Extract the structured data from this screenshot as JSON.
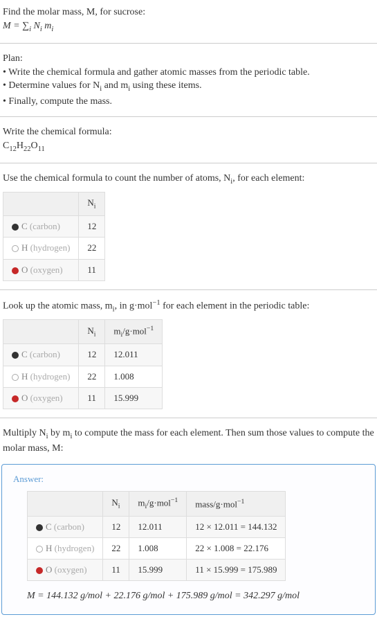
{
  "intro": {
    "line1": "Find the molar mass, M, for sucrose:",
    "line2_html": "M = ∑<sub>i</sub> N<sub>i</sub> m<sub>i</sub>"
  },
  "plan": {
    "heading": "Plan:",
    "b1": "• Write the chemical formula and gather atomic masses from the periodic table.",
    "b2_html": "• Determine values for N<sub>i</sub> and m<sub>i</sub> using these items.",
    "b3": "• Finally, compute the mass."
  },
  "chemFormula": {
    "heading": "Write the chemical formula:",
    "formula_html": "C<sub>12</sub>H<sub>22</sub>O<sub>11</sub>"
  },
  "countHeading_html": "Use the chemical formula to count the number of atoms, N<sub>i</sub>, for each element:",
  "table1": {
    "h_ni_html": "N<sub>i</sub>",
    "r1_el_html": "<span class='swatch c-swatch'></span>C <span style='color:#aaa'>(carbon)</span>",
    "r1_ni": "12",
    "r2_el_html": "<span class='swatch h-swatch'></span>H <span style='color:#aaa'>(hydrogen)</span>",
    "r2_ni": "22",
    "r3_el_html": "<span class='swatch o-swatch'></span>O <span style='color:#aaa'>(oxygen)</span>",
    "r3_ni": "11"
  },
  "lookupHeading_html": "Look up the atomic mass, m<sub>i</sub>, in g·mol<sup>−1</sup> for each element in the periodic table:",
  "table2": {
    "h_ni_html": "N<sub>i</sub>",
    "h_mi_html": "m<sub>i</sub>/g·mol<sup>−1</sup>",
    "r1_el_html": "<span class='swatch c-swatch'></span>C <span style='color:#aaa'>(carbon)</span>",
    "r1_ni": "12",
    "r1_mi": "12.011",
    "r2_el_html": "<span class='swatch h-swatch'></span>H <span style='color:#aaa'>(hydrogen)</span>",
    "r2_ni": "22",
    "r2_mi": "1.008",
    "r3_el_html": "<span class='swatch o-swatch'></span>O <span style='color:#aaa'>(oxygen)</span>",
    "r3_ni": "11",
    "r3_mi": "15.999"
  },
  "multiplyHeading_html": "Multiply N<sub>i</sub> by m<sub>i</sub> to compute the mass for each element. Then sum those values to compute the molar mass, M:",
  "answer": {
    "label": "Answer:",
    "h_ni_html": "N<sub>i</sub>",
    "h_mi_html": "m<sub>i</sub>/g·mol<sup>−1</sup>",
    "h_mass_html": "mass/g·mol<sup>−1</sup>",
    "r1_el_html": "<span class='swatch c-swatch'></span>C <span style='color:#aaa'>(carbon)</span>",
    "r1_ni": "12",
    "r1_mi": "12.011",
    "r1_mass": "12 × 12.011 = 144.132",
    "r2_el_html": "<span class='swatch h-swatch'></span>H <span style='color:#aaa'>(hydrogen)</span>",
    "r2_ni": "22",
    "r2_mi": "1.008",
    "r2_mass": "22 × 1.008 = 22.176",
    "r3_el_html": "<span class='swatch o-swatch'></span>O <span style='color:#aaa'>(oxygen)</span>",
    "r3_ni": "11",
    "r3_mi": "15.999",
    "r3_mass": "11 × 15.999 = 175.989",
    "final": "M = 144.132 g/mol + 22.176 g/mol + 175.989 g/mol = 342.297 g/mol"
  }
}
